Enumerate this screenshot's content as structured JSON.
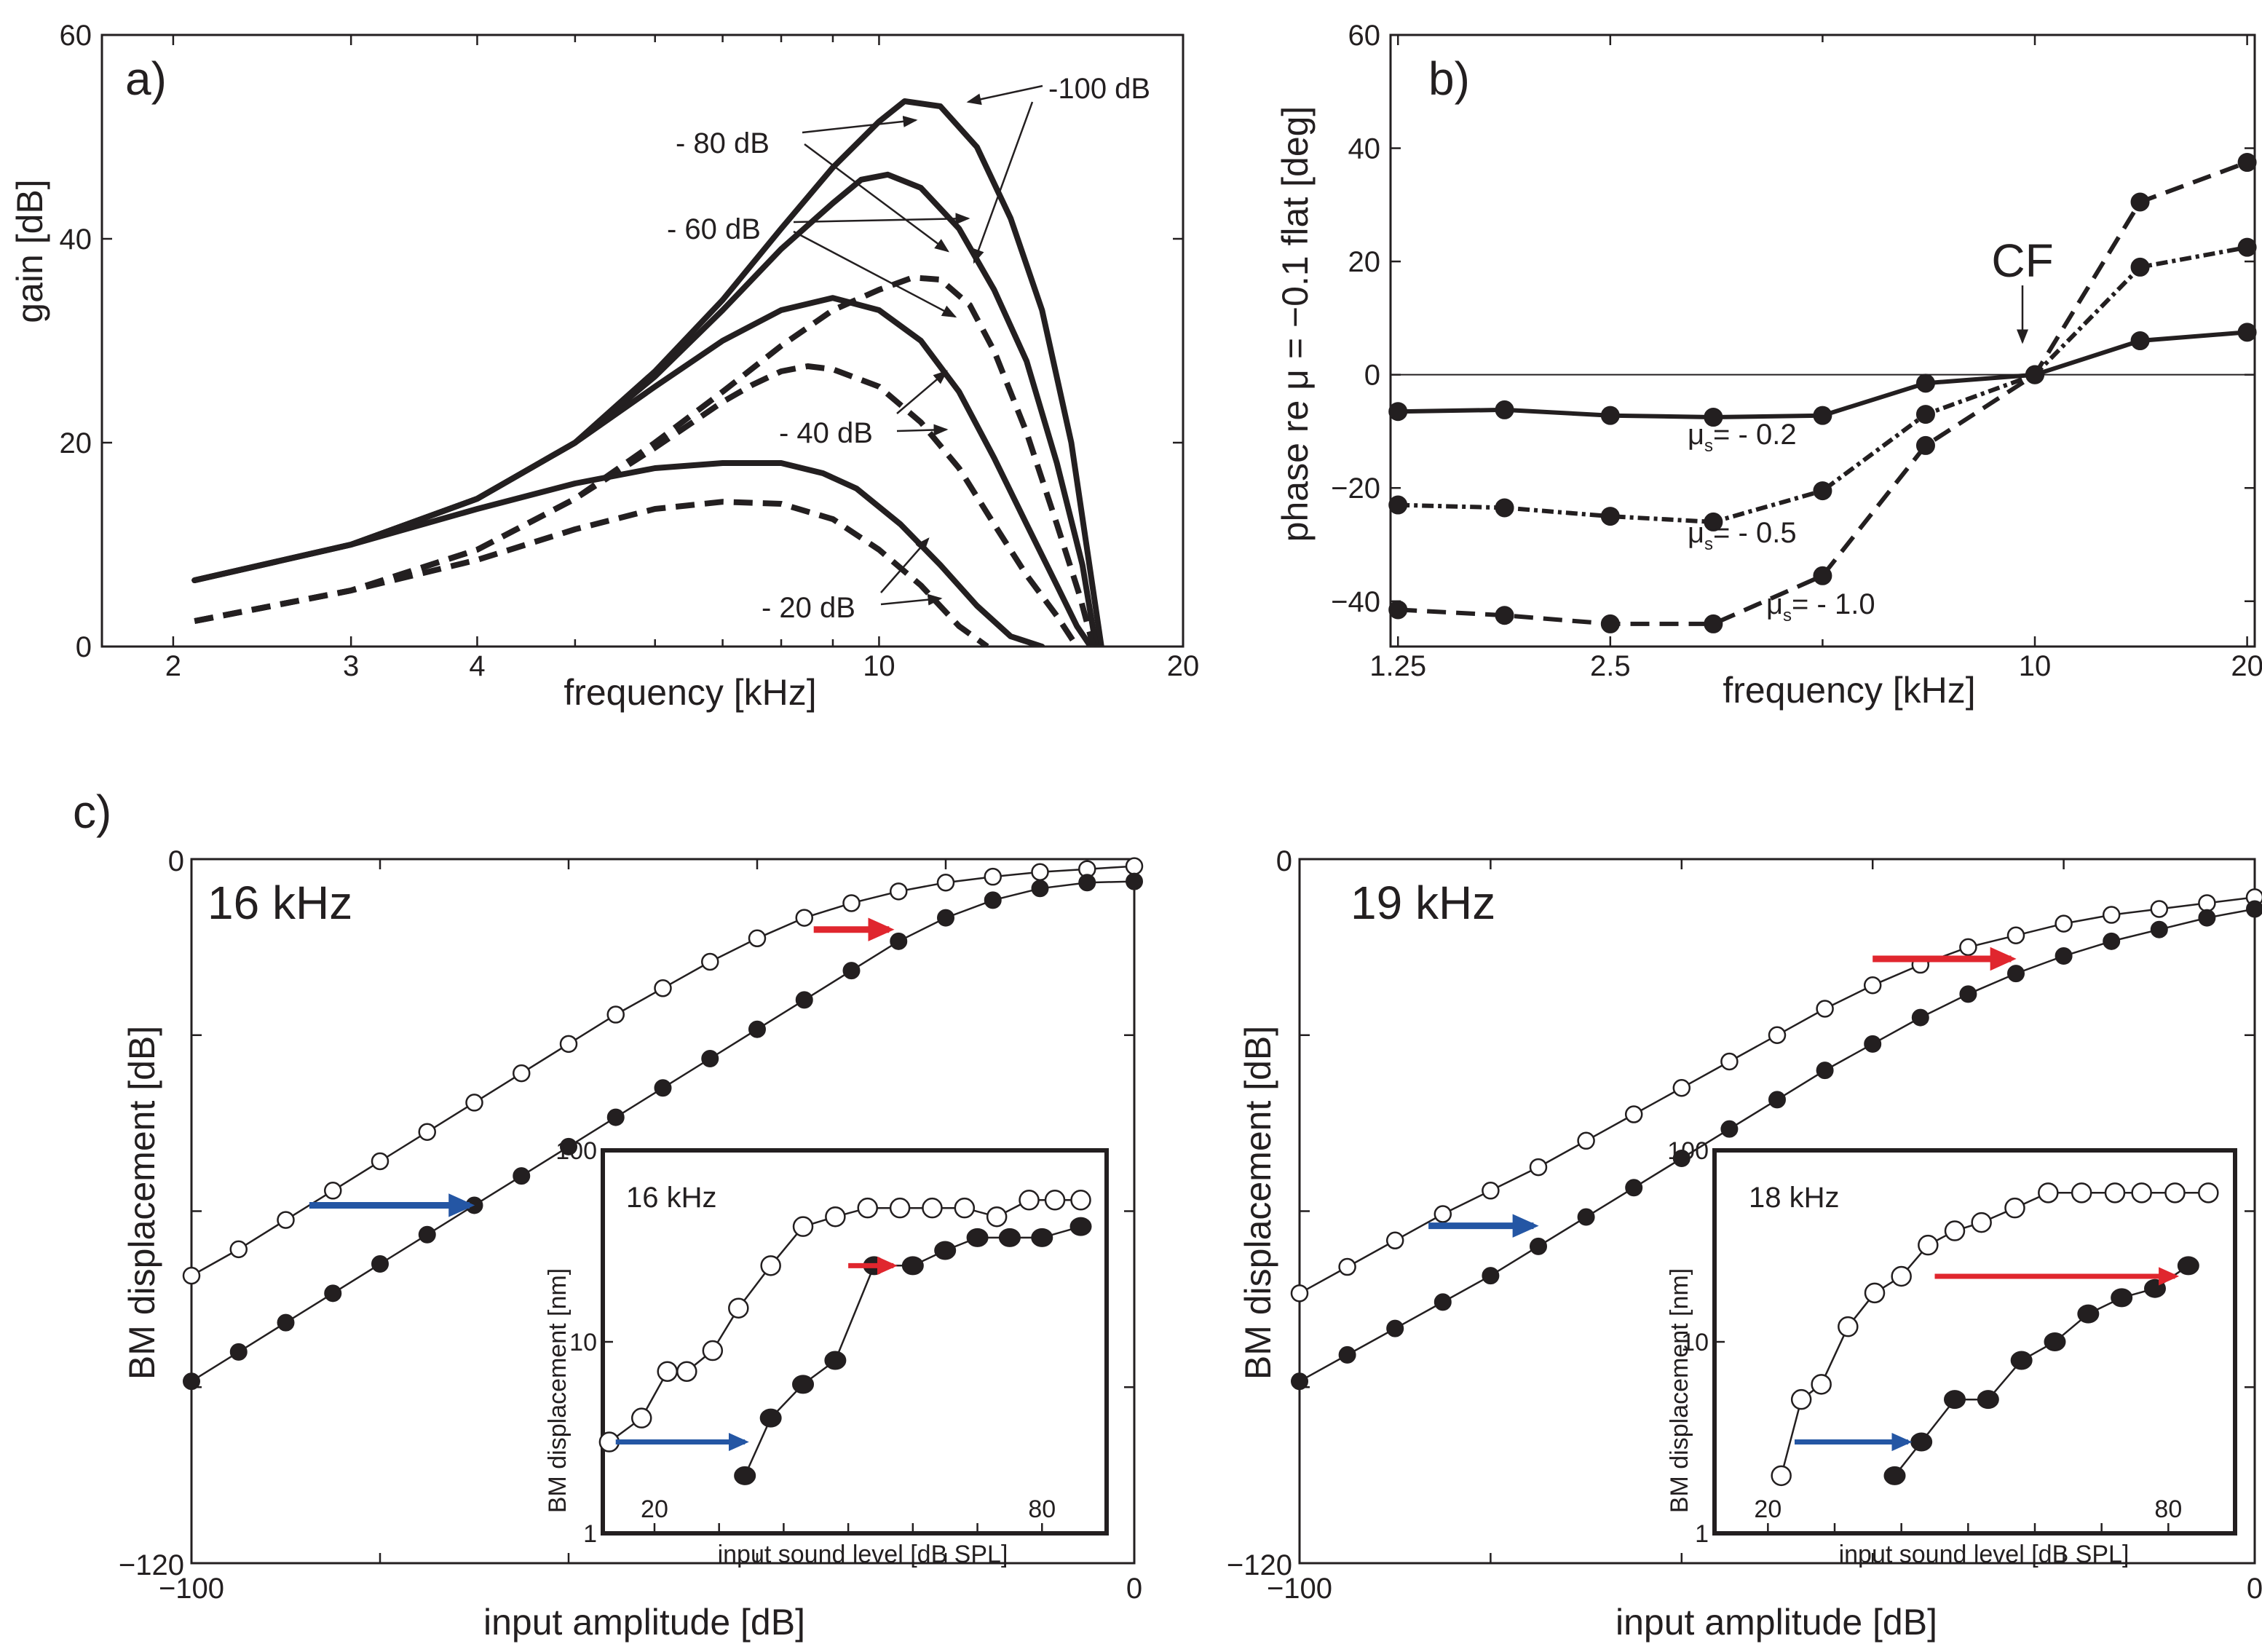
{
  "panels": {
    "a": {
      "label": "a)"
    },
    "b": {
      "label": "b)",
      "cf_label": "CF"
    },
    "c": {
      "label": "c)"
    }
  },
  "gain_annotations": [
    "- 80 dB",
    "-100 dB",
    "- 60 dB",
    "- 40 dB",
    "- 20 dB"
  ],
  "phase_annotations": [
    "μ",
    "s",
    "= - 0.2",
    "μ",
    "s",
    "= - 0.5",
    "μ",
    "s",
    "= - 1.0"
  ],
  "colors": {
    "ink": "#231f20",
    "blue_arrow": "#2456a4",
    "red_arrow": "#e0262e"
  },
  "chart_data": [
    {
      "id": "gain",
      "type": "line",
      "xscale": "log",
      "xlabel": "frequency [kHz]",
      "ylabel": "gain [dB]",
      "xlim": [
        1.7,
        20
      ],
      "ylim": [
        0,
        60
      ],
      "xticks": [
        2,
        3,
        4,
        10,
        20
      ],
      "xticklabels": [
        "2",
        "3",
        "4",
        "10",
        "20"
      ],
      "xminorticks": [
        5,
        6,
        7,
        8,
        9
      ],
      "yticks": [
        0,
        20,
        40,
        60
      ],
      "yticklabels": [
        "0",
        "20",
        "40",
        "60"
      ],
      "series": [
        {
          "name": "-100 dB",
          "style": "solid",
          "width": 13,
          "x": [
            2.1,
            3,
            4,
            5,
            6,
            7,
            8,
            9,
            10,
            10.6,
            11.5,
            12.5,
            13.5,
            14.5,
            15.5,
            16.1,
            16.6
          ],
          "y": [
            6.5,
            10,
            14.5,
            20,
            27,
            34,
            41,
            47,
            51.5,
            53.5,
            53,
            49,
            42,
            33,
            20,
            9,
            0
          ]
        },
        {
          "name": "-80 dB",
          "style": "solid",
          "width": 8,
          "x": [
            2.1,
            3,
            4,
            5,
            6,
            7,
            8,
            9,
            9.6,
            10.2,
            11,
            12,
            13,
            14,
            15,
            15.9,
            16.4
          ],
          "y": [
            6.5,
            10,
            14.5,
            20,
            26.5,
            33,
            39,
            43.5,
            45.8,
            46.3,
            45,
            41,
            35,
            28,
            18,
            8,
            0
          ]
        },
        {
          "name": "-60 dB",
          "style": "solid",
          "width": 8,
          "x": [
            2.1,
            3,
            4,
            5,
            6,
            7,
            8,
            9,
            10,
            11,
            12,
            13,
            14,
            15,
            15.7,
            16.2
          ],
          "y": [
            6.5,
            10,
            14.5,
            20,
            25.5,
            30,
            33,
            34.2,
            33,
            30,
            25,
            18.5,
            12,
            6,
            2,
            0
          ]
        },
        {
          "name": "-40 dB",
          "style": "dash",
          "width": 8,
          "x": [
            2.1,
            3,
            4,
            5,
            6,
            7,
            8,
            9,
            10,
            10.8,
            11.5,
            12.3,
            13,
            14,
            15,
            15.8,
            16.3
          ],
          "y": [
            2.5,
            5.5,
            9.5,
            14.5,
            20,
            25,
            29.5,
            33,
            35,
            36.2,
            36,
            33.5,
            29,
            21,
            12,
            5,
            0
          ]
        },
        {
          "name": "-20 dB",
          "style": "dash",
          "width": 8,
          "x": [
            2.1,
            3,
            4,
            5,
            6,
            7,
            7.5,
            8,
            8.5,
            9,
            10,
            11,
            12,
            13,
            14,
            15,
            15.7
          ],
          "y": [
            2.5,
            5.5,
            9.5,
            14.5,
            19.5,
            24,
            25.7,
            27,
            27.5,
            27.2,
            25.5,
            22,
            17.5,
            12,
            7,
            3,
            0
          ]
        },
        {
          "name": "-20 dB solid",
          "style": "solid",
          "width": 8,
          "x": [
            2.1,
            3,
            4,
            5,
            6,
            7,
            8,
            8.8,
            9.5,
            10.5,
            11.5,
            12.5,
            13.5,
            14.5
          ],
          "y": [
            6.5,
            10,
            13.5,
            16,
            17.5,
            18,
            18,
            17,
            15.5,
            12,
            8,
            4,
            1,
            0
          ]
        },
        {
          "name": "-20 dB dash low",
          "style": "dash",
          "width": 8,
          "x": [
            2.1,
            3,
            4,
            5,
            6,
            7,
            8,
            9,
            10,
            11,
            12,
            12.8
          ],
          "y": [
            2.5,
            5.5,
            8.5,
            11.5,
            13.5,
            14.2,
            14,
            12.5,
            9.5,
            6,
            2,
            0
          ]
        }
      ]
    },
    {
      "id": "phase",
      "type": "line",
      "xscale": "log",
      "xlabel": "frequency [kHz]",
      "ylabel": "phase re μ = −0.1 flat [deg]",
      "xlim": [
        1.22,
        20.5
      ],
      "ylim": [
        -48,
        60
      ],
      "xticks": [
        1.25,
        2.5,
        10,
        20
      ],
      "xticklabels": [
        "1.25",
        "2.5",
        "10",
        "20"
      ],
      "xminorticks": [
        5
      ],
      "yticks": [
        -40,
        -20,
        0,
        20,
        40,
        60
      ],
      "yticklabels": [
        "−40",
        "−20",
        "0",
        "20",
        "40",
        "60"
      ],
      "x": [
        1.25,
        1.77,
        2.5,
        3.5,
        5.0,
        7.0,
        10.0,
        14.1,
        20.0
      ],
      "series": [
        {
          "name": "μs = -0.2",
          "style": "solid",
          "values": [
            -6.5,
            -6.2,
            -7.2,
            -7.5,
            -7.2,
            -1.5,
            0,
            6,
            7.5
          ]
        },
        {
          "name": "μs = -0.5",
          "style": "dashdot",
          "values": [
            -23,
            -23.5,
            -25,
            -26,
            -20.5,
            -7,
            0,
            19,
            22.5
          ]
        },
        {
          "name": "μs = -1.0",
          "style": "dash",
          "values": [
            -41.5,
            -42.5,
            -44,
            -44,
            -35.5,
            -12.5,
            0,
            30.5,
            37.5
          ]
        }
      ]
    },
    {
      "id": "io16",
      "type": "line",
      "title": "16 kHz",
      "xlabel": "input amplitude [dB]",
      "ylabel": "BM displacement [dB]",
      "xlim": [
        -100,
        0
      ],
      "ylim": [
        -120,
        0
      ],
      "xticks": [
        -100,
        -80,
        -60,
        -40,
        -20,
        0
      ],
      "xticklabels": [
        "−100",
        "",
        "",
        "",
        "",
        "0"
      ],
      "yticks": [
        -120,
        -90,
        -60,
        -30,
        0
      ],
      "yticklabels": [
        "−120",
        "",
        "",
        "",
        "0"
      ],
      "series": [
        {
          "name": "open",
          "marker": "open",
          "x": [
            -100,
            -95,
            -90,
            -85,
            -80,
            -75,
            -70,
            -65,
            -60,
            -55,
            -50,
            -45,
            -40,
            -35,
            -30,
            -25,
            -20,
            -15,
            -10,
            -5,
            0
          ],
          "y": [
            -71,
            -66.5,
            -61.5,
            -56.5,
            -51.5,
            -46.5,
            -41.5,
            -36.5,
            -31.5,
            -26.5,
            -22,
            -17.5,
            -13.5,
            -10,
            -7.5,
            -5.5,
            -4,
            -3,
            -2.2,
            -1.7,
            -1.2
          ]
        },
        {
          "name": "filled",
          "marker": "filled",
          "x": [
            -100,
            -95,
            -90,
            -85,
            -80,
            -75,
            -70,
            -65,
            -60,
            -55,
            -50,
            -45,
            -40,
            -35,
            -30,
            -25,
            -20,
            -15,
            -10,
            -5,
            0
          ],
          "y": [
            -89,
            -84,
            -79,
            -74,
            -69,
            -64,
            -59,
            -54,
            -49,
            -44,
            -39,
            -34,
            -29,
            -24,
            -19,
            -14,
            -10,
            -7,
            -5,
            -4,
            -3.8
          ]
        }
      ],
      "arrows": [
        {
          "color": "blue",
          "x0": -87.5,
          "x1": -70.5,
          "y": -59
        },
        {
          "color": "red",
          "x0": -34,
          "x1": -26,
          "y": -12
        }
      ],
      "inset": {
        "title": "16 kHz",
        "xlabel": "input sound level [dB SPL]",
        "ylabel": "BM displacement [nm]",
        "xlim": [
          12,
          90
        ],
        "yscale": "log",
        "ylim": [
          1,
          100
        ],
        "xticks": [
          20,
          30,
          40,
          50,
          60,
          70,
          80
        ],
        "xticklabels": [
          "20",
          "",
          "",
          "",
          "",
          "",
          "80"
        ],
        "yticks": [
          1,
          10,
          100
        ],
        "yticklabels": [
          "1",
          "10",
          "100"
        ],
        "series": [
          {
            "name": "open",
            "marker": "open",
            "x": [
              13,
              18,
              22,
              25,
              29,
              33,
              38,
              43,
              48,
              53,
              58,
              63,
              68,
              73,
              78,
              82,
              86
            ],
            "y": [
              3,
              4,
              7,
              7,
              9,
              15,
              25,
              40,
              45,
              50,
              50,
              50,
              50,
              45,
              55,
              55,
              55
            ]
          },
          {
            "name": "filled",
            "marker": "filled",
            "x": [
              34,
              38,
              43,
              48,
              54,
              60,
              65,
              70,
              75,
              80,
              86
            ],
            "y": [
              2,
              4,
              6,
              8,
              25,
              25,
              30,
              35,
              35,
              35,
              40
            ]
          }
        ],
        "arrows": [
          {
            "color": "blue",
            "x0": 14,
            "x1": 34,
            "y": 3
          },
          {
            "color": "red",
            "x0": 50,
            "x1": 57,
            "y": 25
          }
        ]
      }
    },
    {
      "id": "io19",
      "type": "line",
      "title": "19 kHz",
      "xlabel": "input amplitude [dB]",
      "ylabel": "BM displacement [dB]",
      "xlim": [
        -100,
        0
      ],
      "ylim": [
        -120,
        0
      ],
      "xticks": [
        -100,
        -80,
        -60,
        -40,
        -20,
        0
      ],
      "xticklabels": [
        "−100",
        "",
        "",
        "",
        "",
        "0"
      ],
      "yticks": [
        -120,
        -90,
        -60,
        -30,
        0
      ],
      "yticklabels": [
        "−120",
        "",
        "",
        "",
        "0"
      ],
      "series": [
        {
          "name": "open",
          "marker": "open",
          "x": [
            -100,
            -95,
            -90,
            -85,
            -80,
            -75,
            -70,
            -65,
            -60,
            -55,
            -50,
            -45,
            -40,
            -35,
            -30,
            -25,
            -20,
            -15,
            -10,
            -5,
            0
          ],
          "y": [
            -74,
            -69.5,
            -65,
            -60.5,
            -56.5,
            -52.5,
            -48,
            -43.5,
            -39,
            -34.5,
            -30,
            -25.5,
            -21.5,
            -18,
            -15,
            -13,
            -11,
            -9.5,
            -8.5,
            -7.5,
            -6.5
          ]
        },
        {
          "name": "filled",
          "marker": "filled",
          "x": [
            -100,
            -95,
            -90,
            -85,
            -80,
            -75,
            -70,
            -65,
            -60,
            -55,
            -50,
            -45,
            -40,
            -35,
            -30,
            -25,
            -20,
            -15,
            -10,
            -5,
            0
          ],
          "y": [
            -89,
            -84.5,
            -80,
            -75.5,
            -71,
            -66,
            -61,
            -56,
            -51,
            -46,
            -41,
            -36,
            -31.5,
            -27,
            -23,
            -19.5,
            -16.5,
            -14,
            -12,
            -10,
            -8.5
          ]
        }
      ],
      "arrows": [
        {
          "color": "blue",
          "x0": -86.5,
          "x1": -75.5,
          "y": -62.5
        },
        {
          "color": "red",
          "x0": -40,
          "x1": -25.5,
          "y": -17
        }
      ],
      "inset": {
        "title": "18 kHz",
        "xlabel": "input sound level [dB SPL]",
        "ylabel": "BM displacement [nm]",
        "xlim": [
          12,
          90
        ],
        "yscale": "log",
        "ylim": [
          1,
          100
        ],
        "xticks": [
          20,
          30,
          40,
          50,
          60,
          70,
          80
        ],
        "xticklabels": [
          "20",
          "",
          "",
          "",
          "",
          "",
          "80"
        ],
        "yticks": [
          1,
          10,
          100
        ],
        "yticklabels": [
          "1",
          "10",
          "100"
        ],
        "series": [
          {
            "name": "open",
            "marker": "open",
            "x": [
              22,
              25,
              28,
              32,
              36,
              40,
              44,
              48,
              52,
              57,
              62,
              67,
              72,
              76,
              81,
              86
            ],
            "y": [
              2,
              5,
              6,
              12,
              18,
              22,
              32,
              38,
              42,
              50,
              60,
              60,
              60,
              60,
              60,
              60
            ]
          },
          {
            "name": "filled",
            "marker": "filled",
            "x": [
              39,
              43,
              48,
              53,
              58,
              63,
              68,
              73,
              78,
              83
            ],
            "y": [
              2,
              3,
              5,
              5,
              8,
              10,
              14,
              17,
              19,
              25
            ]
          }
        ],
        "arrows": [
          {
            "color": "blue",
            "x0": 24,
            "x1": 41,
            "y": 3
          },
          {
            "color": "red",
            "x0": 45,
            "x1": 81,
            "y": 22
          }
        ]
      }
    }
  ]
}
